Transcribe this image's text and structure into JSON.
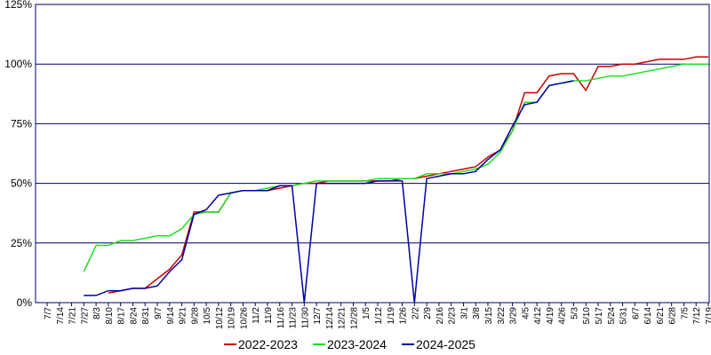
{
  "chart_data": {
    "type": "line",
    "categories": [
      "7/7",
      "7/14",
      "7/21",
      "7/27",
      "8/3",
      "8/10",
      "8/17",
      "8/24",
      "8/31",
      "9/7",
      "9/14",
      "9/21",
      "9/28",
      "10/5",
      "10/12",
      "10/19",
      "10/26",
      "11/2",
      "11/9",
      "11/16",
      "11/23",
      "11/30",
      "12/7",
      "12/14",
      "12/21",
      "12/28",
      "1/5",
      "1/12",
      "1/19",
      "1/26",
      "2/2",
      "2/9",
      "2/16",
      "2/23",
      "3/1",
      "3/8",
      "3/15",
      "3/22",
      "3/29",
      "4/5",
      "4/12",
      "4/19",
      "4/26",
      "5/3",
      "5/10",
      "5/17",
      "5/24",
      "5/31",
      "6/7",
      "6/14",
      "6/21",
      "6/28",
      "7/5",
      "7/12",
      "7/19"
    ],
    "series": [
      {
        "name": "2022-2023",
        "color": "#cc0000",
        "values": [
          null,
          null,
          null,
          null,
          null,
          4,
          5,
          6,
          6,
          10,
          14,
          20,
          38,
          38,
          38,
          46,
          47,
          47,
          47,
          48,
          49,
          50,
          50,
          51,
          51,
          51,
          51,
          51,
          51,
          52,
          52,
          53,
          54,
          55,
          56,
          57,
          61,
          64,
          72,
          88,
          88,
          95,
          96,
          96,
          89,
          99,
          99,
          100,
          100,
          101,
          102,
          102,
          102,
          103,
          103
        ]
      },
      {
        "name": "2023-2024",
        "color": "#22e022",
        "values": [
          null,
          null,
          null,
          13,
          24,
          24,
          26,
          26,
          27,
          28,
          28,
          31,
          37,
          38,
          38,
          46,
          47,
          47,
          48,
          49,
          49,
          50,
          51,
          51,
          51,
          51,
          51,
          52,
          52,
          52,
          52,
          54,
          54,
          54,
          55,
          56,
          58,
          63,
          72,
          84,
          84,
          91,
          92,
          93,
          93,
          94,
          95,
          95,
          96,
          97,
          98,
          99,
          100,
          100,
          100
        ]
      },
      {
        "name": "2024-2025",
        "color": "#0000aa",
        "values": [
          null,
          null,
          null,
          3,
          3,
          5,
          5,
          6,
          6,
          7,
          13,
          18,
          37,
          39,
          45,
          46,
          47,
          47,
          47,
          49,
          49,
          0,
          50,
          50,
          50,
          50,
          50,
          51,
          51,
          51,
          0,
          52,
          53,
          54,
          54,
          55,
          60,
          64,
          74,
          83,
          84,
          91,
          92,
          93,
          null,
          null,
          null,
          null,
          null,
          null,
          null,
          null,
          null,
          null,
          null
        ]
      }
    ],
    "ylim": [
      0,
      125
    ],
    "yticks": [
      {
        "value": 0,
        "label": "0%"
      },
      {
        "value": 25,
        "label": "25%"
      },
      {
        "value": 50,
        "label": "50%"
      },
      {
        "value": 75,
        "label": "75%"
      },
      {
        "value": 100,
        "label": "100%"
      },
      {
        "value": 125,
        "label": "125%"
      }
    ],
    "grid": true
  }
}
